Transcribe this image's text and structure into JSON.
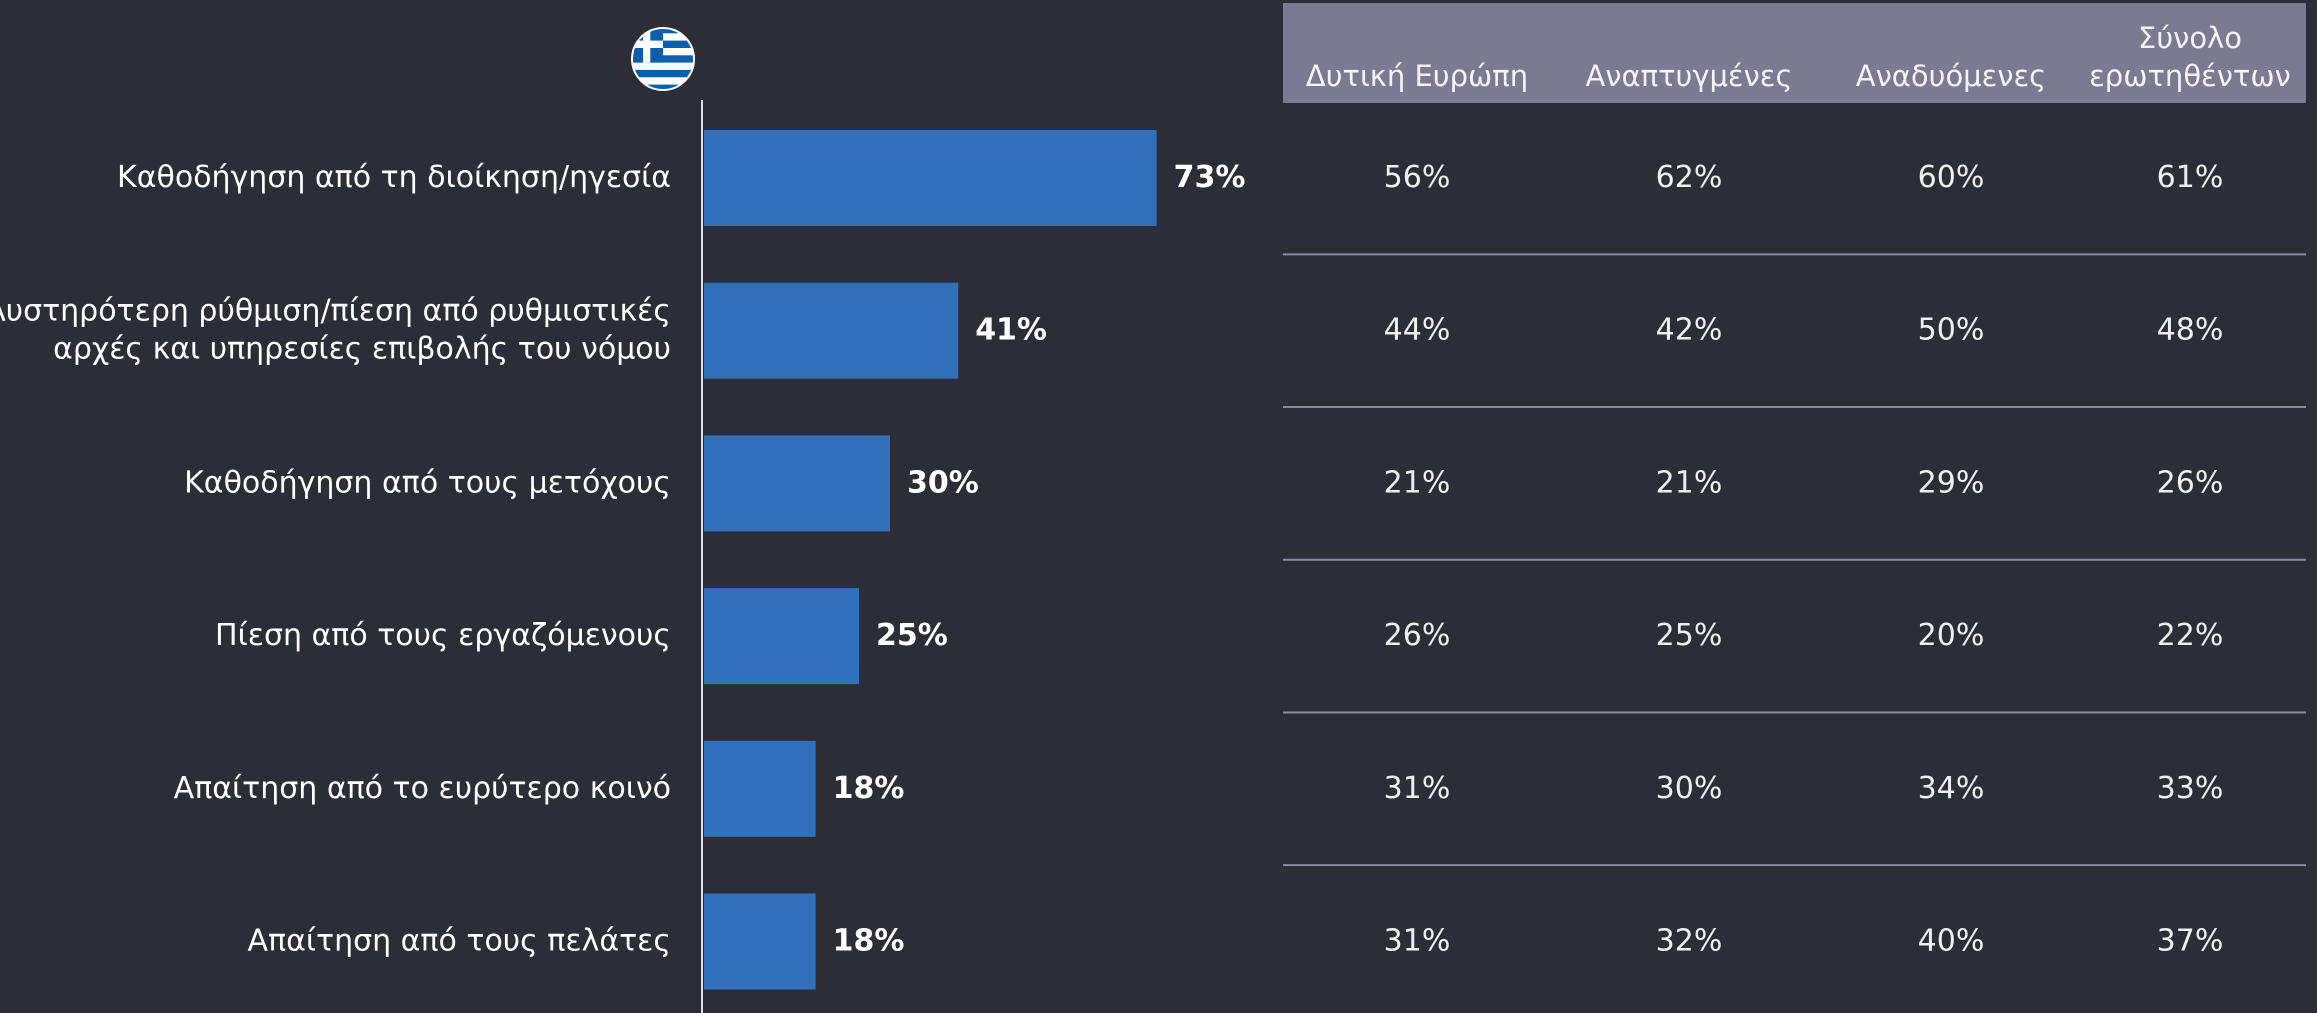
{
  "chart_data": {
    "type": "bar",
    "orientation": "horizontal",
    "categories": [
      "Καθοδήγηση από τη διοίκηση/ηγεσία",
      "Αυστηρότερη ρύθμιση/πίεση από ρυθμιστικές\nαρχές και υπηρεσίες επιβολής του νόμου",
      "Καθοδήγηση από τους μετόχους",
      "Πίεση από τους εργαζόμενους",
      "Απαίτηση από το ευρύτερο κοινό",
      "Απαίτηση από τους πελάτες"
    ],
    "values": [
      73,
      41,
      30,
      25,
      18,
      18
    ],
    "value_labels": [
      "73%",
      "41%",
      "30%",
      "25%",
      "18%",
      "18%"
    ],
    "color": "#3171bb"
  },
  "table": {
    "header": [
      "Δυτική Ευρώπη",
      "Αναπτυγμένες",
      "Αναδυόμενες",
      "Σύνολο\nερωτηθέντων"
    ],
    "rows": [
      [
        "56%",
        "62%",
        "60%",
        "61%"
      ],
      [
        "44%",
        "42%",
        "50%",
        "48%"
      ],
      [
        "21%",
        "21%",
        "29%",
        "26%"
      ],
      [
        "26%",
        "25%",
        "20%",
        "22%"
      ],
      [
        "31%",
        "30%",
        "34%",
        "33%"
      ],
      [
        "31%",
        "32%",
        "40%",
        "37%"
      ]
    ]
  }
}
